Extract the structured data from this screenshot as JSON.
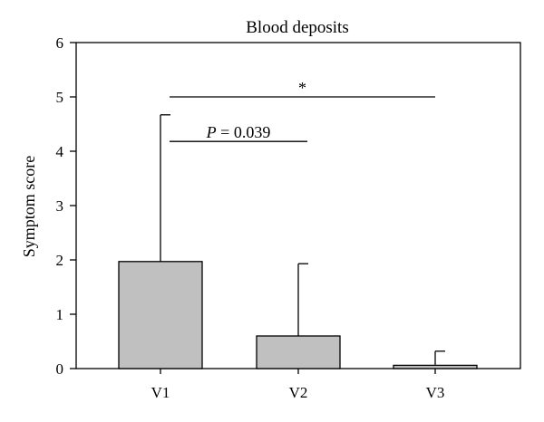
{
  "chart_data": {
    "type": "bar",
    "title": "Blood deposits",
    "xlabel": "",
    "ylabel": "Symptom score",
    "categories": [
      "V1",
      "V2",
      "V3"
    ],
    "values": [
      1.97,
      0.6,
      0.06
    ],
    "error_upper": [
      4.67,
      1.93,
      0.32
    ],
    "ylim": [
      0,
      6
    ],
    "yticks": [
      "0",
      "1",
      "2",
      "3",
      "4",
      "5",
      "6"
    ],
    "grid": false,
    "bar_color": "#c0c0c0",
    "annotations": [
      {
        "id": "p-label",
        "from": "V1",
        "to": "V2",
        "level": 4.18,
        "label_italic": "P",
        "label_rest": " = 0.039"
      },
      {
        "id": "star-label",
        "from": "V1",
        "to": "V3",
        "level": 5.0,
        "label": "*"
      }
    ]
  }
}
